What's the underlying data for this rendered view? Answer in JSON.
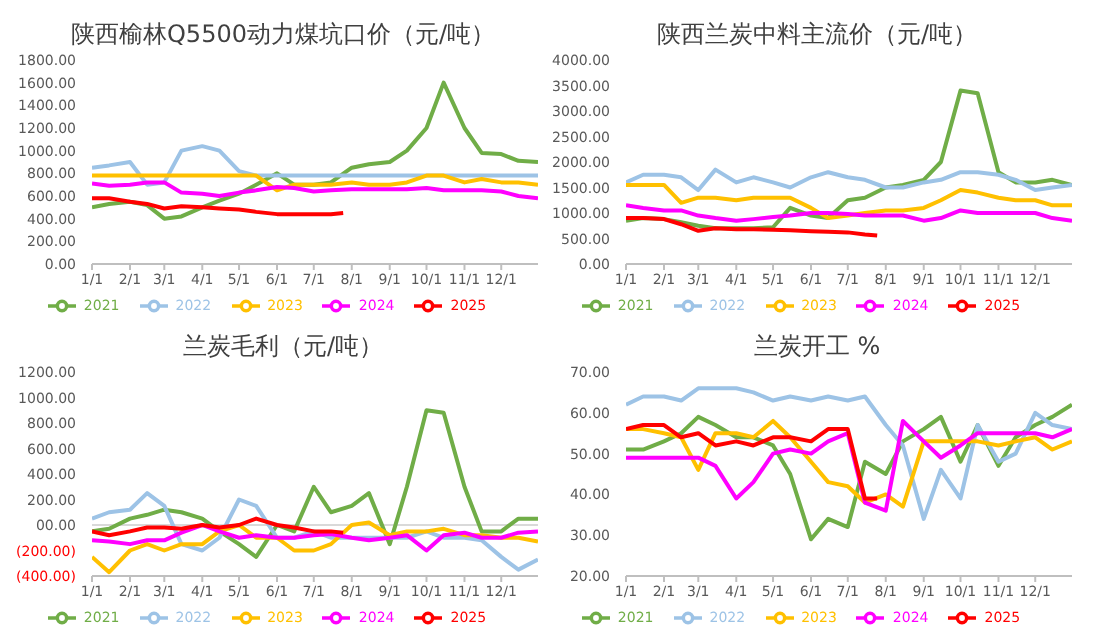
{
  "chart_data": [
    {
      "type": "line",
      "title": "陕西榆林Q5500动力煤坑口价（元/吨）",
      "legend": "bottom",
      "x": [
        "--01-01",
        "--01-15",
        "--02-01",
        "--02-15",
        "--03-01",
        "--03-15",
        "--04-01",
        "--04-15",
        "--05-01",
        "--05-15",
        "--06-01",
        "--06-15",
        "--07-01",
        "--07-15",
        "--08-01",
        "--08-15",
        "--09-01",
        "--09-15",
        "--10-01",
        "--10-15",
        "--11-01",
        "--11-15",
        "--12-01",
        "--12-15",
        "--12-31"
      ],
      "xlim": [
        "--01-01",
        "--12-31"
      ],
      "xticks": [
        {
          "value": "--01-01",
          "label": "1/1"
        },
        {
          "value": "--02-01",
          "label": "2/1"
        },
        {
          "value": "--03-01",
          "label": "3/1"
        },
        {
          "value": "--04-01",
          "label": "4/1"
        },
        {
          "value": "--05-01",
          "label": "5/1"
        },
        {
          "value": "--06-01",
          "label": "6/1"
        },
        {
          "value": "--07-01",
          "label": "7/1"
        },
        {
          "value": "--08-01",
          "label": "8/1"
        },
        {
          "value": "--09-01",
          "label": "9/1"
        },
        {
          "value": "--10-01",
          "label": "10/1"
        },
        {
          "value": "--11-01",
          "label": "11/1"
        },
        {
          "value": "--12-01",
          "label": "12/1"
        }
      ],
      "ylim": [
        0,
        1800
      ],
      "yticks": [
        {
          "value": 0,
          "label": "0.00"
        },
        {
          "value": 200,
          "label": "200.00"
        },
        {
          "value": 400,
          "label": "400.00"
        },
        {
          "value": 600,
          "label": "600.00"
        },
        {
          "value": 800,
          "label": "800.00"
        },
        {
          "value": 1000,
          "label": "1000.00"
        },
        {
          "value": 1200,
          "label": "1200.00"
        },
        {
          "value": 1400,
          "label": "1400.00"
        },
        {
          "value": 1600,
          "label": "1600.00"
        },
        {
          "value": 1800,
          "label": "1800.00"
        }
      ],
      "series": [
        {
          "name": "2021",
          "color": "#70ad47",
          "values": [
            500,
            530,
            550,
            520,
            400,
            420,
            500,
            560,
            620,
            700,
            800,
            700,
            700,
            720,
            850,
            880,
            900,
            1000,
            1200,
            1600,
            1200,
            980,
            970,
            910,
            900
          ]
        },
        {
          "name": "2022",
          "color": "#9dc3e6",
          "values": [
            850,
            870,
            900,
            700,
            720,
            1000,
            1040,
            1000,
            820,
            780,
            780,
            780,
            780,
            780,
            780,
            780,
            780,
            780,
            780,
            780,
            780,
            780,
            780,
            780,
            780
          ]
        },
        {
          "name": "2023",
          "color": "#ffc000",
          "values": [
            780,
            780,
            780,
            780,
            780,
            780,
            780,
            780,
            780,
            780,
            650,
            700,
            700,
            700,
            720,
            700,
            700,
            720,
            780,
            780,
            720,
            750,
            720,
            720,
            700
          ]
        },
        {
          "name": "2024",
          "color": "#ff00ff",
          "values": [
            710,
            690,
            700,
            720,
            720,
            630,
            620,
            600,
            630,
            650,
            680,
            670,
            640,
            650,
            660,
            660,
            660,
            660,
            670,
            650,
            650,
            650,
            640,
            600,
            580
          ]
        },
        {
          "name": "2025",
          "color": "#ff0000",
          "x": [
            "--01-01",
            "--01-15",
            "--02-01",
            "--02-15",
            "--03-01",
            "--03-15",
            "--04-01",
            "--04-15",
            "--05-01",
            "--05-15",
            "--06-01",
            "--06-15",
            "--07-01",
            "--07-15",
            "--07-25"
          ],
          "values": [
            580,
            580,
            550,
            530,
            490,
            510,
            500,
            490,
            480,
            460,
            440,
            440,
            440,
            440,
            450
          ]
        }
      ]
    },
    {
      "type": "line",
      "title": "陕西兰炭中料主流价（元/吨）",
      "legend": "bottom",
      "x": [
        "--01-01",
        "--01-15",
        "--02-01",
        "--02-15",
        "--03-01",
        "--03-15",
        "--04-01",
        "--04-15",
        "--05-01",
        "--05-15",
        "--06-01",
        "--06-15",
        "--07-01",
        "--07-15",
        "--08-01",
        "--08-15",
        "--09-01",
        "--09-15",
        "--10-01",
        "--10-15",
        "--11-01",
        "--11-15",
        "--12-01",
        "--12-15",
        "--12-31"
      ],
      "xlim": [
        "--01-01",
        "--12-31"
      ],
      "xticks": [
        {
          "value": "--01-01",
          "label": "1/1"
        },
        {
          "value": "--02-01",
          "label": "2/1"
        },
        {
          "value": "--03-01",
          "label": "3/1"
        },
        {
          "value": "--04-01",
          "label": "4/1"
        },
        {
          "value": "--05-01",
          "label": "5/1"
        },
        {
          "value": "--06-01",
          "label": "6/1"
        },
        {
          "value": "--07-01",
          "label": "7/1"
        },
        {
          "value": "--08-01",
          "label": "8/1"
        },
        {
          "value": "--09-01",
          "label": "9/1"
        },
        {
          "value": "--10-01",
          "label": "10/1"
        },
        {
          "value": "--11-01",
          "label": "11/1"
        },
        {
          "value": "--12-01",
          "label": "12/1"
        }
      ],
      "ylim": [
        0,
        4000
      ],
      "yticks": [
        {
          "value": 0,
          "label": "0.00"
        },
        {
          "value": 500,
          "label": "500.00"
        },
        {
          "value": 1000,
          "label": "1000.00"
        },
        {
          "value": 1500,
          "label": "1500.00"
        },
        {
          "value": 2000,
          "label": "2000.00"
        },
        {
          "value": 2500,
          "label": "2500.00"
        },
        {
          "value": 3000,
          "label": "3000.00"
        },
        {
          "value": 3500,
          "label": "3500.00"
        },
        {
          "value": 4000,
          "label": "4000.00"
        }
      ],
      "series": [
        {
          "name": "2021",
          "color": "#70ad47",
          "values": [
            850,
            900,
            880,
            820,
            750,
            700,
            700,
            700,
            720,
            1100,
            950,
            900,
            1250,
            1300,
            1500,
            1550,
            1650,
            2000,
            3400,
            3350,
            1800,
            1600,
            1600,
            1650,
            1550
          ]
        },
        {
          "name": "2022",
          "color": "#9dc3e6",
          "values": [
            1600,
            1750,
            1750,
            1700,
            1450,
            1850,
            1600,
            1700,
            1600,
            1500,
            1700,
            1800,
            1700,
            1650,
            1500,
            1500,
            1600,
            1650,
            1800,
            1800,
            1750,
            1650,
            1450,
            1500,
            1550
          ]
        },
        {
          "name": "2023",
          "color": "#ffc000",
          "values": [
            1550,
            1550,
            1550,
            1200,
            1300,
            1300,
            1250,
            1300,
            1300,
            1300,
            1100,
            900,
            950,
            1000,
            1050,
            1050,
            1100,
            1250,
            1450,
            1400,
            1300,
            1250,
            1250,
            1150,
            1150
          ]
        },
        {
          "name": "2024",
          "color": "#ff00ff",
          "values": [
            1150,
            1100,
            1050,
            1050,
            950,
            900,
            850,
            880,
            920,
            950,
            1000,
            1000,
            980,
            950,
            950,
            950,
            850,
            900,
            1050,
            1000,
            1000,
            1000,
            1000,
            900,
            850
          ]
        },
        {
          "name": "2025",
          "color": "#ff0000",
          "x": [
            "--01-01",
            "--01-15",
            "--02-01",
            "--02-15",
            "--03-01",
            "--03-15",
            "--04-01",
            "--04-15",
            "--05-01",
            "--05-15",
            "--06-01",
            "--06-15",
            "--07-01",
            "--07-15",
            "--07-25"
          ],
          "values": [
            900,
            900,
            880,
            780,
            650,
            700,
            680,
            680,
            670,
            660,
            640,
            630,
            620,
            580,
            560
          ]
        }
      ]
    },
    {
      "type": "line",
      "title": "兰炭毛利（元/吨）",
      "legend": "bottom",
      "x": [
        "--01-01",
        "--01-15",
        "--02-01",
        "--02-15",
        "--03-01",
        "--03-15",
        "--04-01",
        "--04-15",
        "--05-01",
        "--05-15",
        "--06-01",
        "--06-15",
        "--07-01",
        "--07-15",
        "--08-01",
        "--08-15",
        "--09-01",
        "--09-15",
        "--10-01",
        "--10-15",
        "--11-01",
        "--11-15",
        "--12-01",
        "--12-15",
        "--12-31"
      ],
      "xlim": [
        "--01-01",
        "--12-31"
      ],
      "xticks": [
        {
          "value": "--01-01",
          "label": "1/1"
        },
        {
          "value": "--02-01",
          "label": "2/1"
        },
        {
          "value": "--03-01",
          "label": "3/1"
        },
        {
          "value": "--04-01",
          "label": "4/1"
        },
        {
          "value": "--05-01",
          "label": "5/1"
        },
        {
          "value": "--06-01",
          "label": "6/1"
        },
        {
          "value": "--07-01",
          "label": "7/1"
        },
        {
          "value": "--08-01",
          "label": "8/1"
        },
        {
          "value": "--09-01",
          "label": "9/1"
        },
        {
          "value": "--10-01",
          "label": "10/1"
        },
        {
          "value": "--11-01",
          "label": "11/1"
        },
        {
          "value": "--12-01",
          "label": "12/1"
        }
      ],
      "ylim": [
        -400,
        1200
      ],
      "yticks": [
        {
          "value": -400,
          "label": "(400.00)"
        },
        {
          "value": -200,
          "label": "(200.00)"
        },
        {
          "value": 0,
          "label": "00.00"
        },
        {
          "value": 200,
          "label": "200.00"
        },
        {
          "value": 400,
          "label": "400.00"
        },
        {
          "value": 600,
          "label": "600.00"
        },
        {
          "value": 800,
          "label": "800.00"
        },
        {
          "value": 1000,
          "label": "1000.00"
        },
        {
          "value": 1200,
          "label": "1200.00"
        }
      ],
      "series": [
        {
          "name": "2021",
          "color": "#70ad47",
          "values": [
            -50,
            -30,
            50,
            80,
            120,
            100,
            50,
            -50,
            -150,
            -250,
            0,
            -50,
            300,
            100,
            150,
            250,
            -150,
            300,
            900,
            880,
            300,
            -50,
            -50,
            50,
            50
          ]
        },
        {
          "name": "2022",
          "color": "#9dc3e6",
          "values": [
            50,
            100,
            120,
            250,
            150,
            -150,
            -200,
            -100,
            200,
            150,
            -100,
            -100,
            -50,
            -100,
            -100,
            -100,
            -100,
            -100,
            -50,
            -100,
            -100,
            -120,
            -250,
            -350,
            -270
          ]
        },
        {
          "name": "2023",
          "color": "#ffc000",
          "values": [
            -250,
            -370,
            -200,
            -150,
            -200,
            -150,
            -150,
            -50,
            0,
            -100,
            -100,
            -200,
            -200,
            -150,
            0,
            20,
            -80,
            -50,
            -50,
            -30,
            -80,
            -80,
            -100,
            -100,
            -130
          ]
        },
        {
          "name": "2024",
          "color": "#ff00ff",
          "values": [
            -120,
            -130,
            -150,
            -120,
            -120,
            -60,
            0,
            -50,
            -100,
            -80,
            -100,
            -100,
            -80,
            -70,
            -100,
            -120,
            -100,
            -80,
            -200,
            -80,
            -60,
            -100,
            -100,
            -60,
            -50
          ]
        },
        {
          "name": "2025",
          "color": "#ff0000",
          "x": [
            "--01-01",
            "--01-15",
            "--02-01",
            "--02-15",
            "--03-01",
            "--03-15",
            "--04-01",
            "--04-15",
            "--05-01",
            "--05-15",
            "--06-01",
            "--06-15",
            "--07-01",
            "--07-15",
            "--07-25"
          ],
          "values": [
            -50,
            -80,
            -50,
            -20,
            -20,
            -30,
            0,
            -20,
            0,
            50,
            0,
            -20,
            -50,
            -50,
            -60
          ]
        }
      ]
    },
    {
      "type": "line",
      "title": "兰炭开工 %",
      "legend": "bottom",
      "x": [
        "--01-01",
        "--01-15",
        "--02-01",
        "--02-15",
        "--03-01",
        "--03-15",
        "--04-01",
        "--04-15",
        "--05-01",
        "--05-15",
        "--06-01",
        "--06-15",
        "--07-01",
        "--07-15",
        "--08-01",
        "--08-15",
        "--09-01",
        "--09-15",
        "--10-01",
        "--10-15",
        "--11-01",
        "--11-15",
        "--12-01",
        "--12-15",
        "--12-31"
      ],
      "xlim": [
        "--01-01",
        "--12-31"
      ],
      "xticks": [
        {
          "value": "--01-01",
          "label": "1/1"
        },
        {
          "value": "--02-01",
          "label": "2/1"
        },
        {
          "value": "--03-01",
          "label": "3/1"
        },
        {
          "value": "--04-01",
          "label": "4/1"
        },
        {
          "value": "--05-01",
          "label": "5/1"
        },
        {
          "value": "--06-01",
          "label": "6/1"
        },
        {
          "value": "--07-01",
          "label": "7/1"
        },
        {
          "value": "--08-01",
          "label": "8/1"
        },
        {
          "value": "--09-01",
          "label": "9/1"
        },
        {
          "value": "--10-01",
          "label": "10/1"
        },
        {
          "value": "--11-01",
          "label": "11/1"
        },
        {
          "value": "--12-01",
          "label": "12/1"
        }
      ],
      "ylim": [
        20,
        70
      ],
      "yticks": [
        {
          "value": 20,
          "label": "20.00"
        },
        {
          "value": 30,
          "label": "30.00"
        },
        {
          "value": 40,
          "label": "40.00"
        },
        {
          "value": 50,
          "label": "50.00"
        },
        {
          "value": 60,
          "label": "60.00"
        },
        {
          "value": 70,
          "label": "70.00"
        }
      ],
      "series": [
        {
          "name": "2021",
          "color": "#70ad47",
          "values": [
            51,
            51,
            53,
            55,
            59,
            57,
            54,
            54,
            52,
            45,
            29,
            34,
            32,
            48,
            45,
            53,
            56,
            59,
            48,
            57,
            47,
            54,
            57,
            59,
            62
          ]
        },
        {
          "name": "2022",
          "color": "#9dc3e6",
          "values": [
            62,
            64,
            64,
            63,
            66,
            66,
            66,
            65,
            63,
            64,
            63,
            64,
            63,
            64,
            57,
            52,
            34,
            46,
            39,
            57,
            48,
            50,
            60,
            57,
            56
          ]
        },
        {
          "name": "2023",
          "color": "#ffc000",
          "values": [
            56,
            56,
            55,
            54,
            46,
            55,
            55,
            54,
            58,
            54,
            48,
            43,
            42,
            38,
            40,
            37,
            53,
            53,
            53,
            53,
            52,
            53,
            54,
            51,
            53
          ]
        },
        {
          "name": "2024",
          "color": "#ff00ff",
          "values": [
            49,
            49,
            49,
            49,
            49,
            47,
            39,
            43,
            50,
            51,
            50,
            53,
            55,
            38,
            36,
            58,
            53,
            49,
            52,
            55,
            55,
            55,
            55,
            54,
            56
          ]
        },
        {
          "name": "2025",
          "color": "#ff0000",
          "x": [
            "--01-01",
            "--01-15",
            "--02-01",
            "--02-15",
            "--03-01",
            "--03-15",
            "--04-01",
            "--04-15",
            "--05-01",
            "--05-15",
            "--06-01",
            "--06-15",
            "--07-01",
            "--07-15",
            "--07-25"
          ],
          "values": [
            56,
            57,
            57,
            54,
            55,
            52,
            53,
            52,
            54,
            54,
            53,
            56,
            56,
            39,
            39
          ]
        }
      ]
    }
  ]
}
